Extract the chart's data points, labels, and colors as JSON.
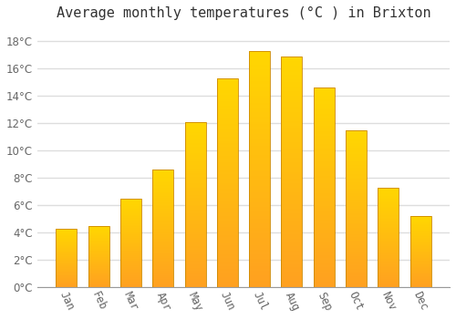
{
  "title": "Average monthly temperatures (°C ) in Brixton",
  "months": [
    "Jan",
    "Feb",
    "Mar",
    "Apr",
    "May",
    "Jun",
    "Jul",
    "Aug",
    "Sep",
    "Oct",
    "Nov",
    "Dec"
  ],
  "temperatures": [
    4.3,
    4.5,
    6.5,
    8.6,
    12.1,
    15.3,
    17.3,
    16.9,
    14.6,
    11.5,
    7.3,
    5.2
  ],
  "bar_color_top": "#FFD700",
  "bar_color_bottom": "#FFA020",
  "bar_edge_color": "#CC8800",
  "background_color": "#FFFFFF",
  "grid_color": "#DDDDDD",
  "text_color": "#666666",
  "title_color": "#333333",
  "ylim": [
    0,
    19
  ],
  "yticks": [
    0,
    2,
    4,
    6,
    8,
    10,
    12,
    14,
    16,
    18
  ],
  "title_fontsize": 11,
  "tick_fontsize": 8.5,
  "bar_width": 0.65
}
